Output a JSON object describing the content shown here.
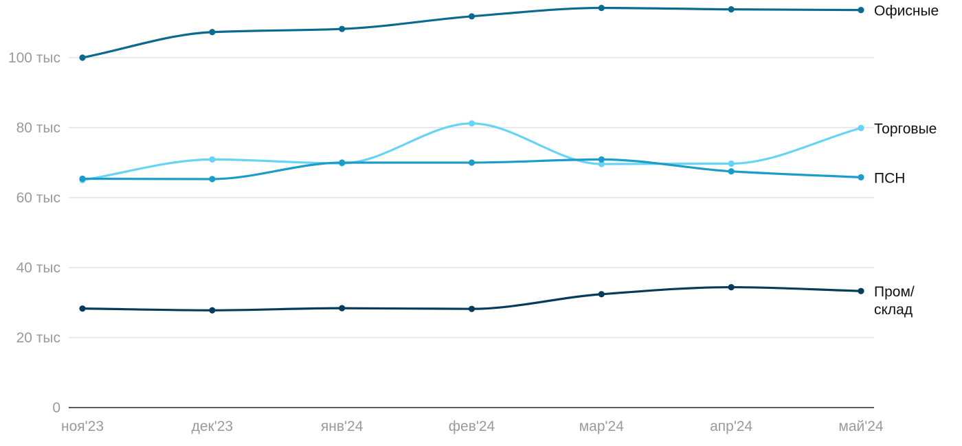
{
  "chart_data": {
    "type": "line",
    "categories": [
      "ноя'23",
      "дек'23",
      "янв'24",
      "фев'24",
      "мар'24",
      "апр'24",
      "май'24"
    ],
    "ylim": [
      0,
      115000
    ],
    "yticks": [
      0,
      20000,
      40000,
      60000,
      80000,
      100000
    ],
    "ytick_labels": [
      "0",
      "20 тыс",
      "40 тыс",
      "60 тыс",
      "80 тыс",
      "100 тыс"
    ],
    "grid": true,
    "legend": "labels at line ends (right)",
    "series": [
      {
        "name": "Офисные",
        "label_lines": [
          "Офисные"
        ],
        "color": "#0a6a8f",
        "values": [
          100000,
          107300,
          108200,
          111800,
          114200,
          113800,
          113600
        ]
      },
      {
        "name": "Торговые",
        "label_lines": [
          "Торговые"
        ],
        "color": "#68d4f5",
        "values": [
          65000,
          70900,
          69800,
          81200,
          69600,
          69700,
          79900
        ]
      },
      {
        "name": "ПСН",
        "label_lines": [
          "ПСН"
        ],
        "color": "#1b9cc9",
        "values": [
          65400,
          65300,
          70000,
          70000,
          70900,
          67500,
          65800
        ]
      },
      {
        "name": "Пром/склад",
        "label_lines": [
          "Пром/",
          "склад"
        ],
        "color": "#063b5c",
        "values": [
          28300,
          27800,
          28400,
          28200,
          32400,
          34400,
          33300
        ]
      }
    ]
  }
}
